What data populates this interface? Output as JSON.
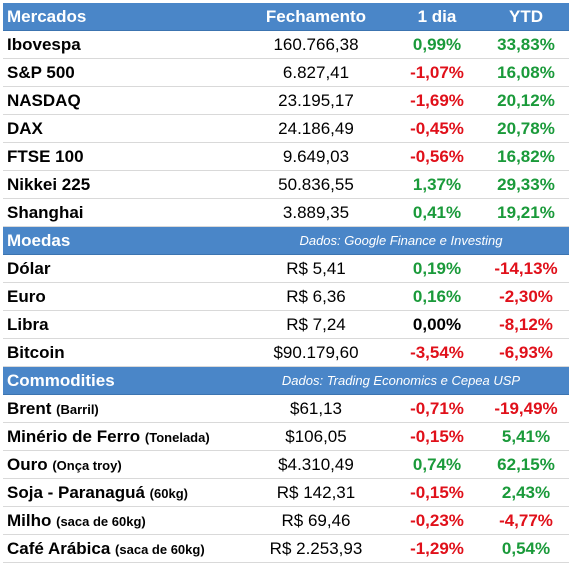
{
  "header": {
    "section": "Mercados",
    "col_close": "Fechamento",
    "col_day": "1 dia",
    "col_ytd": "YTD"
  },
  "markets": [
    {
      "name": "Ibovespa",
      "close": "160.766,38",
      "day": "0,99%",
      "ytd": "33,83%",
      "day_sign": "pos",
      "ytd_sign": "pos"
    },
    {
      "name": "S&P 500",
      "close": "6.827,41",
      "day": "-1,07%",
      "ytd": "16,08%",
      "day_sign": "neg",
      "ytd_sign": "pos"
    },
    {
      "name": "NASDAQ",
      "close": "23.195,17",
      "day": "-1,69%",
      "ytd": "20,12%",
      "day_sign": "neg",
      "ytd_sign": "pos"
    },
    {
      "name": "DAX",
      "close": "24.186,49",
      "day": "-0,45%",
      "ytd": "20,78%",
      "day_sign": "neg",
      "ytd_sign": "pos"
    },
    {
      "name": "FTSE 100",
      "close": "9.649,03",
      "day": "-0,56%",
      "ytd": "16,82%",
      "day_sign": "neg",
      "ytd_sign": "pos"
    },
    {
      "name": "Nikkei 225",
      "close": "50.836,55",
      "day": "1,37%",
      "ytd": "29,33%",
      "day_sign": "pos",
      "ytd_sign": "pos"
    },
    {
      "name": "Shanghai",
      "close": "3.889,35",
      "day": "0,41%",
      "ytd": "19,21%",
      "day_sign": "pos",
      "ytd_sign": "pos"
    }
  ],
  "currencies_header": {
    "section": "Moedas",
    "note": "Dados: Google Finance e Investing"
  },
  "currencies": [
    {
      "name": "Dólar",
      "close": "R$ 5,41",
      "day": "0,19%",
      "ytd": "-14,13%",
      "day_sign": "pos",
      "ytd_sign": "neg"
    },
    {
      "name": "Euro",
      "close": "R$ 6,36",
      "day": "0,16%",
      "ytd": "-2,30%",
      "day_sign": "pos",
      "ytd_sign": "neg"
    },
    {
      "name": "Libra",
      "close": "R$ 7,24",
      "day": "0,00%",
      "ytd": "-8,12%",
      "day_sign": "zero",
      "ytd_sign": "neg"
    },
    {
      "name": "Bitcoin",
      "close": "$90.179,60",
      "day": "-3,54%",
      "ytd": "-6,93%",
      "day_sign": "neg",
      "ytd_sign": "neg"
    }
  ],
  "commodities_header": {
    "section": "Commodities",
    "note": "Dados: Trading Economics e Cepea USP"
  },
  "commodities": [
    {
      "name": "Brent",
      "unit": "(Barril)",
      "close": "$61,13",
      "day": "-0,71%",
      "ytd": "-19,49%",
      "day_sign": "neg",
      "ytd_sign": "neg"
    },
    {
      "name": "Minério de Ferro",
      "unit": "(Tonelada)",
      "close": "$106,05",
      "day": "-0,15%",
      "ytd": "5,41%",
      "day_sign": "neg",
      "ytd_sign": "pos"
    },
    {
      "name": "Ouro",
      "unit": "(Onça troy)",
      "close": "$4.310,49",
      "day": "0,74%",
      "ytd": "62,15%",
      "day_sign": "pos",
      "ytd_sign": "pos"
    },
    {
      "name": "Soja - Paranaguá",
      "unit": "(60kg)",
      "close": "R$ 142,31",
      "day": "-0,15%",
      "ytd": "2,43%",
      "day_sign": "neg",
      "ytd_sign": "pos"
    },
    {
      "name": "Milho",
      "unit": "(saca de 60kg)",
      "close": "R$ 69,46",
      "day": "-0,23%",
      "ytd": "-4,77%",
      "day_sign": "neg",
      "ytd_sign": "neg"
    },
    {
      "name": "Café Arábica",
      "unit": "(saca de 60kg)",
      "close": "R$ 2.253,93",
      "day": "-1,29%",
      "ytd": "0,54%",
      "day_sign": "neg",
      "ytd_sign": "pos"
    }
  ],
  "colors": {
    "header_bg": "#4a86c8",
    "positive": "#1a9a3a",
    "negative": "#e0101a"
  }
}
